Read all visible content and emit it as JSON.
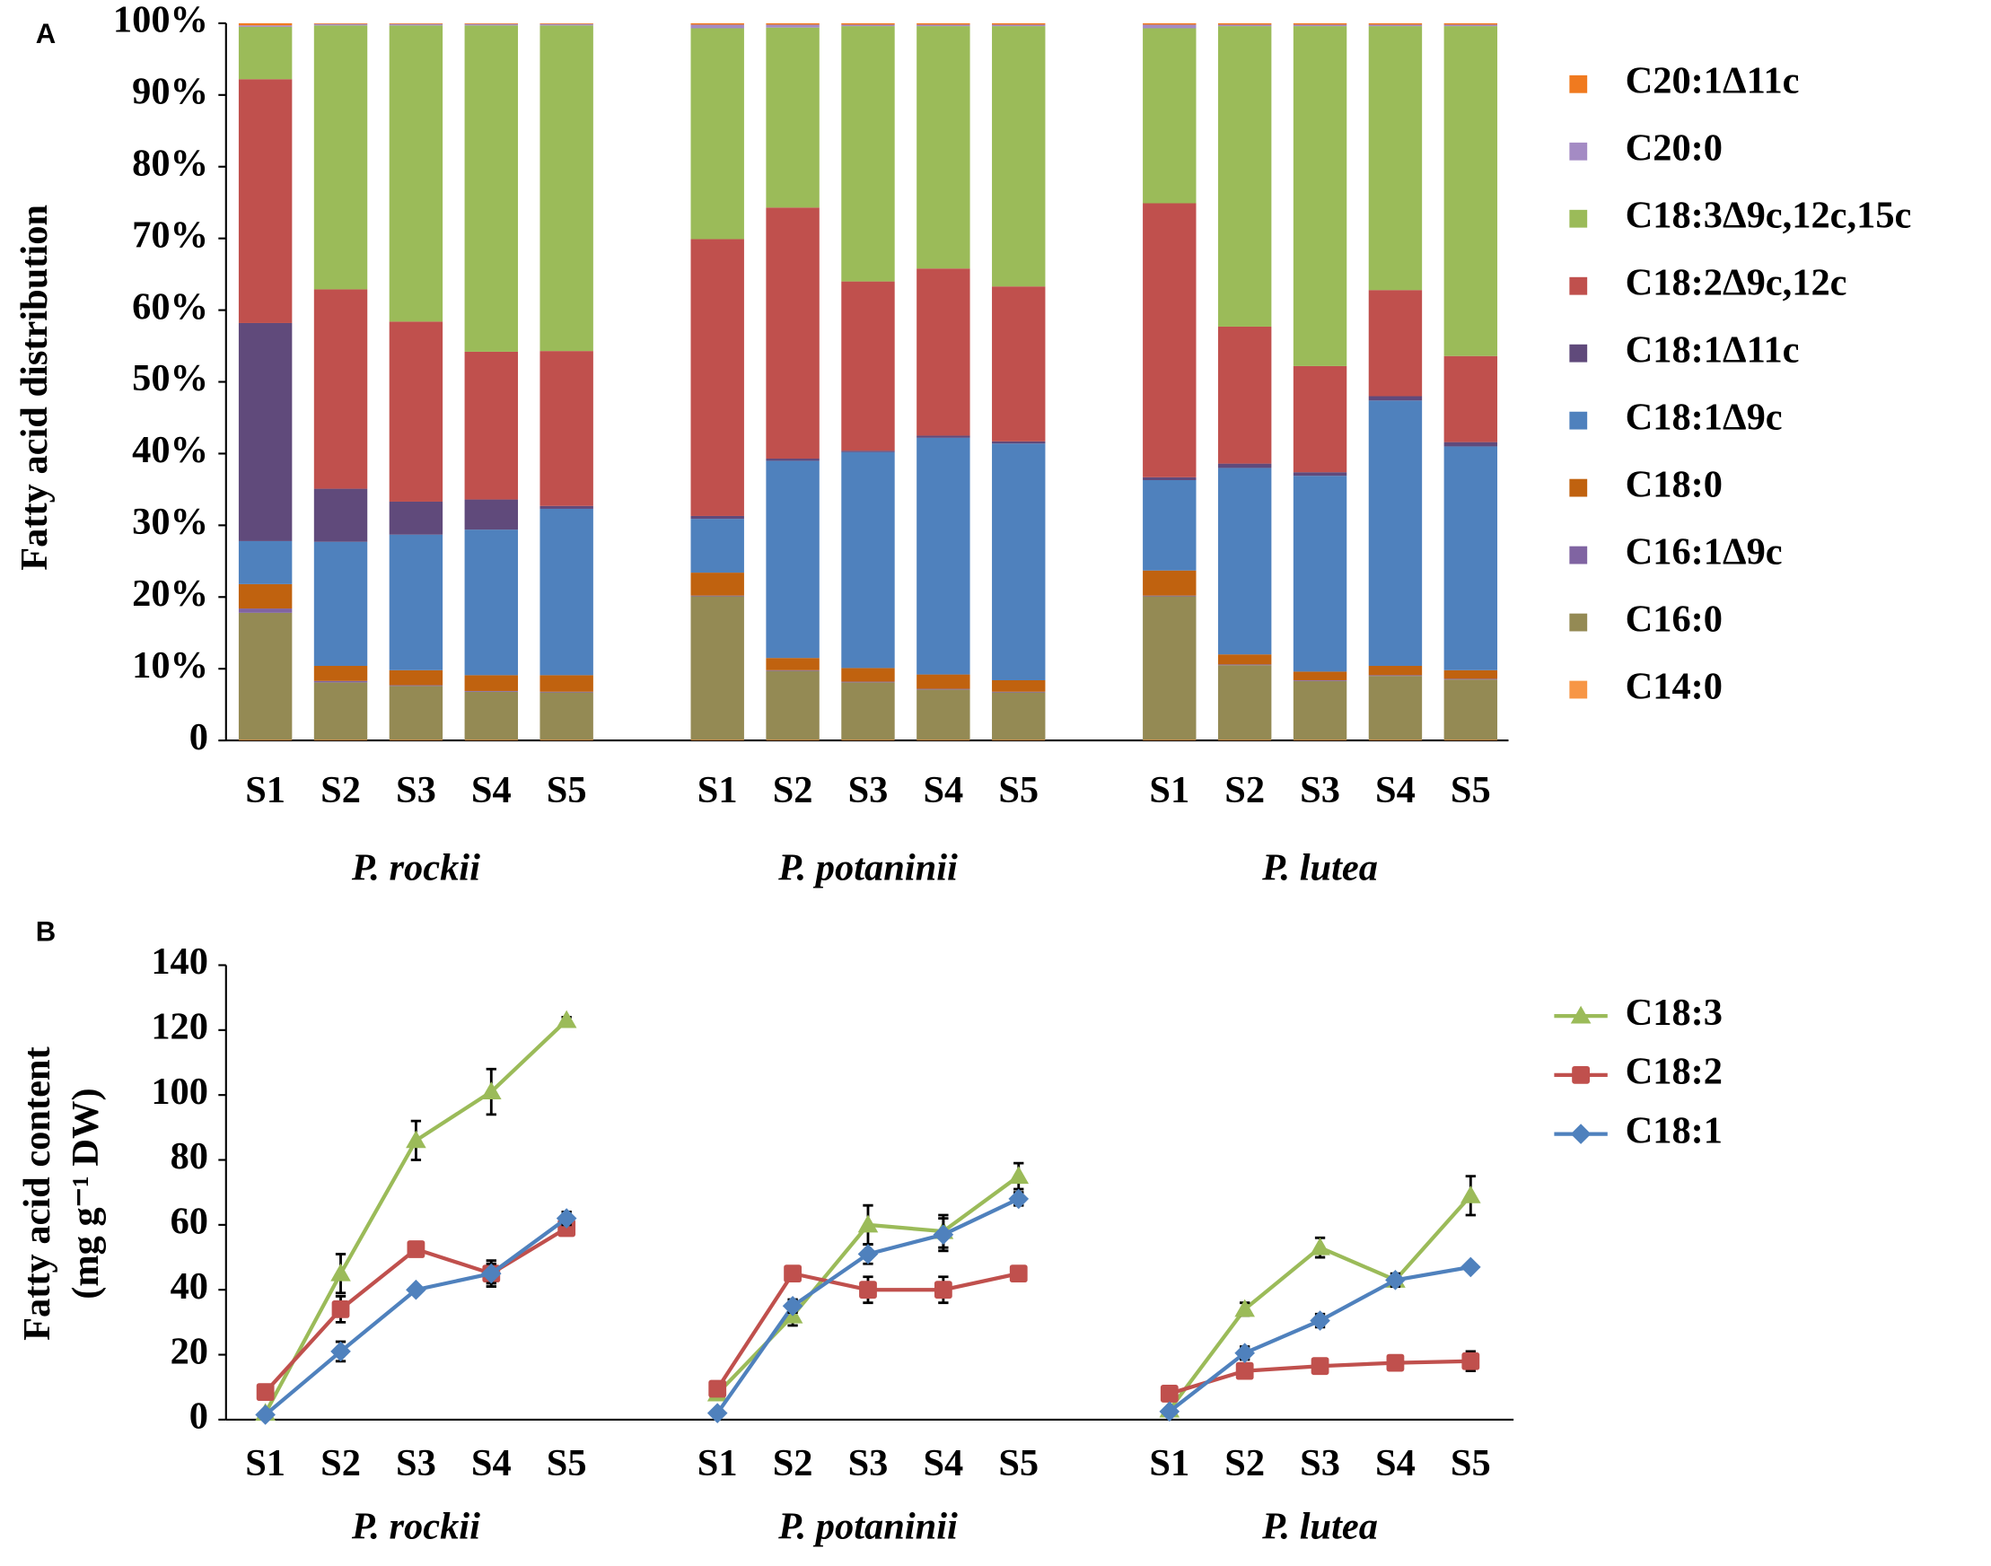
{
  "chart_data": [
    {
      "type": "bar",
      "panel": "A",
      "stacked": true,
      "ylabel": "Fatty acid distribution",
      "categories": [
        "S1",
        "S2",
        "S3",
        "S4",
        "S5",
        "S1",
        "S2",
        "S3",
        "S4",
        "S5",
        "S1",
        "S2",
        "S3",
        "S4",
        "S5"
      ],
      "groups": [
        "P. rockii",
        "P. potaninii",
        "P. lutea"
      ],
      "ylim": [
        0,
        100
      ],
      "yticks": [
        0,
        {
          "value": 10,
          "label": "10%"
        },
        {
          "value": 20,
          "label": "20%"
        },
        {
          "value": 30,
          "label": "30%"
        },
        {
          "value": 40,
          "label": "40%"
        },
        {
          "value": 50,
          "label": "50%"
        },
        {
          "value": 60,
          "label": "60%"
        },
        {
          "value": 70,
          "label": "70%"
        },
        {
          "value": 80,
          "label": "80%"
        },
        {
          "value": 90,
          "label": "90%"
        },
        {
          "value": 100,
          "label": "100%"
        }
      ],
      "series": [
        {
          "name": "C14:0",
          "color": "#f79646",
          "values": [
            0.1,
            0.1,
            0.1,
            0.1,
            0.1,
            0.1,
            0.1,
            0.1,
            0.1,
            0.1,
            0.1,
            0.1,
            0.1,
            0.1,
            0.1
          ]
        },
        {
          "name": "C16:0",
          "color": "#948a54",
          "values": [
            17.7,
            8.0,
            7.5,
            6.7,
            6.6,
            20.0,
            9.6,
            8.0,
            7.0,
            6.6,
            20.0,
            10.4,
            8.2,
            8.9,
            8.4
          ]
        },
        {
          "name": "C16:1Δ9c",
          "color": "#8064a2",
          "values": [
            0.6,
            0.2,
            0.1,
            0.1,
            0.1,
            0.1,
            0.1,
            0.1,
            0.1,
            0.1,
            0.1,
            0.1,
            0.1,
            0.1,
            0.1
          ]
        },
        {
          "name": "C18:0",
          "color": "#c0620f",
          "values": [
            3.4,
            2.1,
            2.1,
            2.2,
            2.3,
            3.2,
            1.7,
            1.9,
            2.0,
            1.6,
            3.5,
            1.4,
            1.2,
            1.3,
            1.2
          ]
        },
        {
          "name": "C18:1Δ9c",
          "color": "#4f81bd",
          "values": [
            6.0,
            17.3,
            18.9,
            20.3,
            23.2,
            7.5,
            27.5,
            30.1,
            33.0,
            33.0,
            12.6,
            26.0,
            27.3,
            37.0,
            31.2
          ]
        },
        {
          "name": "C18:1Δ11c",
          "color": "#604a7b",
          "values": [
            30.4,
            7.4,
            4.6,
            4.2,
            0.4,
            0.4,
            0.3,
            0.2,
            0.3,
            0.3,
            0.4,
            0.6,
            0.5,
            0.6,
            0.6
          ]
        },
        {
          "name": "C18:2Δ9c,12c",
          "color": "#c0504d",
          "values": [
            34.0,
            27.8,
            25.1,
            20.6,
            21.6,
            38.6,
            35.0,
            23.6,
            23.3,
            21.6,
            38.2,
            19.1,
            14.8,
            14.8,
            12.0
          ]
        },
        {
          "name": "C18:3Δ9c,12c,15c",
          "color": "#9bbb59",
          "values": [
            7.3,
            36.8,
            41.3,
            45.5,
            45.4,
            29.4,
            25.1,
            35.6,
            33.8,
            36.3,
            24.4,
            41.9,
            47.4,
            36.8,
            46.0
          ]
        },
        {
          "name": "C20:0",
          "color": "#a48bc4",
          "values": [
            0.2,
            0.2,
            0.2,
            0.2,
            0.2,
            0.5,
            0.4,
            0.2,
            0.2,
            0.2,
            0.5,
            0.2,
            0.2,
            0.2,
            0.2
          ]
        },
        {
          "name": "C20:1Δ11c",
          "color": "#f07a1f",
          "values": [
            0.3,
            0.1,
            0.1,
            0.1,
            0.1,
            0.2,
            0.2,
            0.2,
            0.2,
            0.2,
            0.2,
            0.2,
            0.2,
            0.2,
            0.2
          ]
        }
      ]
    },
    {
      "type": "line",
      "panel": "B",
      "ylabel": [
        "Fatty acid content",
        "(mg g⁻¹ DW)"
      ],
      "categories": [
        "S1",
        "S2",
        "S3",
        "S4",
        "S5",
        "S1",
        "S2",
        "S3",
        "S4",
        "S5",
        "S1",
        "S2",
        "S3",
        "S4",
        "S5"
      ],
      "groups": [
        "P. rockii",
        "P. potaninii",
        "P. lutea"
      ],
      "ylim": [
        0,
        140
      ],
      "yticks": [
        0,
        20,
        40,
        60,
        80,
        100,
        120,
        140
      ],
      "series": [
        {
          "name": "C18:3",
          "color": "#9bbb59",
          "marker": "triangle",
          "values": [
            2,
            45,
            86,
            101,
            123,
            8,
            32,
            60,
            58,
            75,
            3,
            34,
            53,
            43,
            69
          ],
          "errors": [
            0.5,
            6,
            6,
            7,
            1,
            1,
            3,
            6,
            5,
            4,
            0.5,
            2,
            3,
            1,
            6
          ]
        },
        {
          "name": "C18:2",
          "color": "#c0504d",
          "marker": "square",
          "values": [
            8.5,
            34,
            52.5,
            45,
            59,
            9.5,
            45,
            40,
            40,
            45,
            8,
            15,
            16.5,
            17.5,
            18
          ],
          "errors": [
            0.5,
            4,
            2,
            4,
            2,
            0.5,
            2,
            4,
            4,
            1,
            0.5,
            1,
            1,
            1,
            3
          ]
        },
        {
          "name": "C18:1",
          "color": "#4f81bd",
          "marker": "diamond",
          "values": [
            1.5,
            21,
            40,
            45,
            62,
            2,
            35,
            51,
            57,
            68,
            2.5,
            20.5,
            30.5,
            43,
            47
          ],
          "errors": [
            0.5,
            3,
            1,
            3,
            2,
            0.5,
            2,
            3,
            5,
            2,
            0.5,
            2,
            2,
            2,
            1
          ]
        }
      ]
    }
  ]
}
